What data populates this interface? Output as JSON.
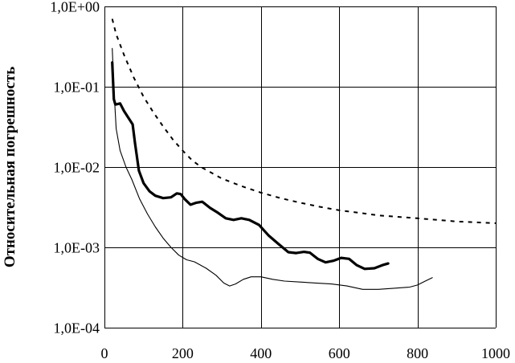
{
  "chart_data": {
    "type": "line",
    "title": "",
    "xlabel": "",
    "ylabel": "Относительная погрешность",
    "xlim": [
      0,
      1000
    ],
    "ylim": [
      0.0001,
      1
    ],
    "yscale": "log",
    "grid": true,
    "legend": "none",
    "x_ticks": [
      "0",
      "200",
      "400",
      "600",
      "800",
      "1000"
    ],
    "y_ticks": [
      "1,0E+00",
      "1,0E-01",
      "1,0E-02",
      "1,0E-03",
      "1,0E-04"
    ],
    "series": [
      {
        "style": "thick",
        "color": "#000000",
        "points": [
          [
            20,
            0.2
          ],
          [
            24,
            0.07
          ],
          [
            28,
            0.06
          ],
          [
            40,
            0.062
          ],
          [
            50,
            0.05
          ],
          [
            60,
            0.042
          ],
          [
            72,
            0.034
          ],
          [
            78,
            0.02
          ],
          [
            88,
            0.009
          ],
          [
            100,
            0.0063
          ],
          [
            115,
            0.005
          ],
          [
            130,
            0.0044
          ],
          [
            150,
            0.0041
          ],
          [
            170,
            0.0042
          ],
          [
            185,
            0.0047
          ],
          [
            195,
            0.0046
          ],
          [
            205,
            0.004
          ],
          [
            220,
            0.0034
          ],
          [
            235,
            0.0036
          ],
          [
            250,
            0.0037
          ],
          [
            270,
            0.0031
          ],
          [
            290,
            0.0027
          ],
          [
            310,
            0.0023
          ],
          [
            330,
            0.0022
          ],
          [
            350,
            0.0023
          ],
          [
            370,
            0.0022
          ],
          [
            395,
            0.0019
          ],
          [
            420,
            0.0014
          ],
          [
            445,
            0.0011
          ],
          [
            470,
            0.00087
          ],
          [
            490,
            0.00085
          ],
          [
            510,
            0.00088
          ],
          [
            525,
            0.00086
          ],
          [
            545,
            0.00072
          ],
          [
            565,
            0.00065
          ],
          [
            585,
            0.00068
          ],
          [
            605,
            0.00074
          ],
          [
            625,
            0.00072
          ],
          [
            645,
            0.0006
          ],
          [
            665,
            0.00054
          ],
          [
            690,
            0.00055
          ],
          [
            710,
            0.0006
          ],
          [
            725,
            0.00063
          ]
        ]
      },
      {
        "style": "thin",
        "color": "#000000",
        "points": [
          [
            20,
            0.3
          ],
          [
            25,
            0.08
          ],
          [
            30,
            0.03
          ],
          [
            40,
            0.016
          ],
          [
            55,
            0.01
          ],
          [
            70,
            0.007
          ],
          [
            90,
            0.004
          ],
          [
            110,
            0.0026
          ],
          [
            130,
            0.0018
          ],
          [
            150,
            0.0013
          ],
          [
            170,
            0.001
          ],
          [
            190,
            0.0008
          ],
          [
            210,
            0.0007
          ],
          [
            230,
            0.00066
          ],
          [
            260,
            0.00055
          ],
          [
            285,
            0.00045
          ],
          [
            305,
            0.00036
          ],
          [
            320,
            0.00033
          ],
          [
            335,
            0.00035
          ],
          [
            355,
            0.0004
          ],
          [
            375,
            0.00043
          ],
          [
            400,
            0.00043
          ],
          [
            430,
            0.0004
          ],
          [
            460,
            0.00038
          ],
          [
            500,
            0.00037
          ],
          [
            540,
            0.00036
          ],
          [
            580,
            0.00035
          ],
          [
            620,
            0.00033
          ],
          [
            660,
            0.0003
          ],
          [
            700,
            0.0003
          ],
          [
            740,
            0.00031
          ],
          [
            780,
            0.00032
          ],
          [
            800,
            0.00034
          ],
          [
            820,
            0.00038
          ],
          [
            838,
            0.00042
          ]
        ]
      },
      {
        "style": "dashed",
        "color": "#000000",
        "points": [
          [
            20,
            0.7
          ],
          [
            30,
            0.45
          ],
          [
            50,
            0.25
          ],
          [
            75,
            0.13
          ],
          [
            100,
            0.075
          ],
          [
            125,
            0.048
          ],
          [
            150,
            0.032
          ],
          [
            175,
            0.022
          ],
          [
            200,
            0.016
          ],
          [
            225,
            0.012
          ],
          [
            250,
            0.0098
          ],
          [
            300,
            0.0072
          ],
          [
            350,
            0.0058
          ],
          [
            400,
            0.0048
          ],
          [
            450,
            0.0041
          ],
          [
            500,
            0.0036
          ],
          [
            550,
            0.0032
          ],
          [
            600,
            0.0029
          ],
          [
            650,
            0.0027
          ],
          [
            700,
            0.0025
          ],
          [
            750,
            0.0024
          ],
          [
            800,
            0.0023
          ],
          [
            850,
            0.0022
          ],
          [
            900,
            0.0021
          ],
          [
            950,
            0.00205
          ],
          [
            1000,
            0.002
          ]
        ]
      }
    ]
  }
}
